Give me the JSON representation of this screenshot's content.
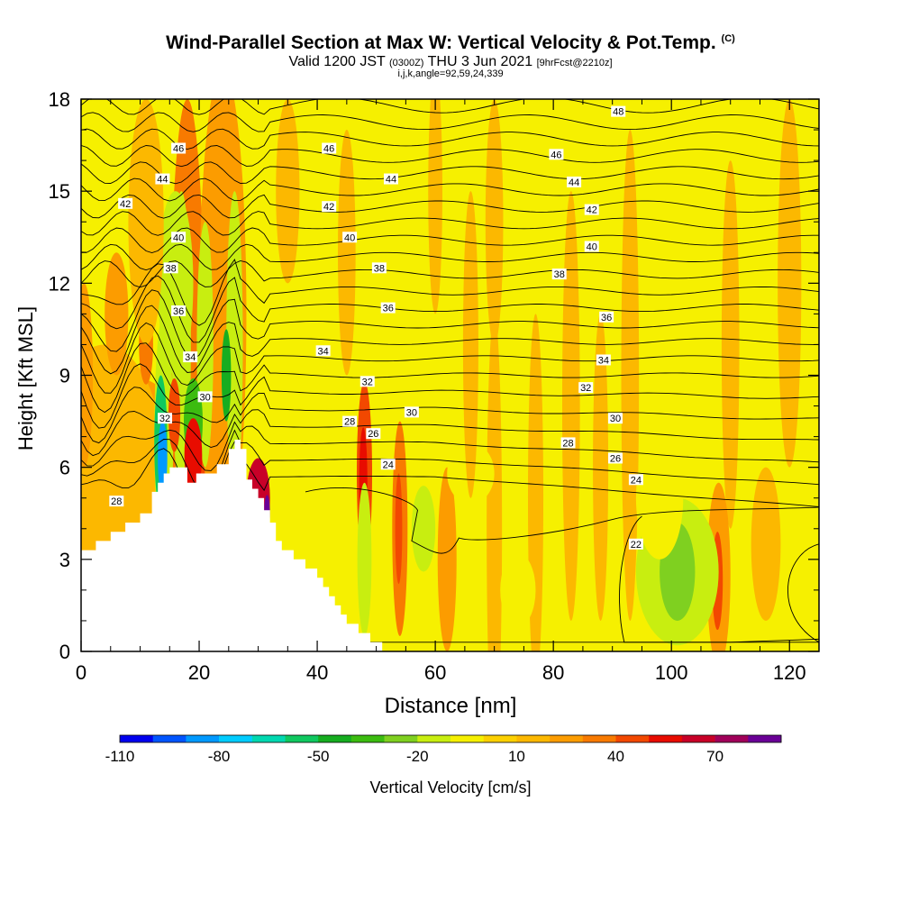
{
  "chart_data": {
    "type": "heatmap",
    "title": "Wind-Parallel Section at Max W: Vertical Velocity & Pot.Temp.",
    "title_mark": "(C)",
    "subtitle_valid": "Valid 1200 JST",
    "subtitle_utc": "(0300Z)",
    "subtitle_date": "THU 3 Jun 2021",
    "subtitle_fcst": "[9hrFcst@2210z]",
    "subtitle_indices": "i,j,k,angle=92,59,24,339",
    "xlabel": "Distance [nm]",
    "ylabel": "Height [Kft MSL]",
    "xlim": [
      0,
      125
    ],
    "ylim": [
      0,
      18
    ],
    "x_ticks": [
      0,
      20,
      40,
      60,
      80,
      100,
      120
    ],
    "y_ticks": [
      0,
      3,
      6,
      9,
      12,
      15,
      18
    ],
    "colorbar": {
      "label": "Vertical Velocity [cm/s]",
      "min": -110,
      "max": 90,
      "step": 10,
      "tick_values": [
        -110,
        -80,
        -50,
        -20,
        10,
        40,
        70
      ],
      "colors": [
        "#0000ee",
        "#0055ff",
        "#0099ff",
        "#00ccff",
        "#00d8b0",
        "#10c860",
        "#16ad20",
        "#3cbc10",
        "#7fd020",
        "#c8ee10",
        "#f6f000",
        "#fcd000",
        "#fcb800",
        "#fc9c00",
        "#f87a00",
        "#f24800",
        "#e80c00",
        "#c80028",
        "#a0005a",
        "#6a0096"
      ]
    },
    "terrain": [
      [
        0,
        3.3
      ],
      [
        2.5,
        3.3
      ],
      [
        2.5,
        3.6
      ],
      [
        5,
        3.6
      ],
      [
        5,
        3.9
      ],
      [
        7.5,
        3.9
      ],
      [
        7.5,
        4.2
      ],
      [
        10,
        4.2
      ],
      [
        10,
        4.5
      ],
      [
        12,
        4.5
      ],
      [
        12,
        5.2
      ],
      [
        13,
        5.2
      ],
      [
        13,
        5.5
      ],
      [
        14,
        5.5
      ],
      [
        14,
        5.8
      ],
      [
        15,
        5.8
      ],
      [
        15,
        6.0
      ],
      [
        18,
        6.0
      ],
      [
        18,
        5.5
      ],
      [
        19.5,
        5.5
      ],
      [
        19.5,
        5.8
      ],
      [
        23,
        5.8
      ],
      [
        23,
        6.1
      ],
      [
        25,
        6.1
      ],
      [
        25,
        6.6
      ],
      [
        26,
        6.6
      ],
      [
        26,
        6.9
      ],
      [
        27,
        6.9
      ],
      [
        27,
        6.6
      ],
      [
        28,
        6.6
      ],
      [
        28,
        5.6
      ],
      [
        29,
        5.6
      ],
      [
        29,
        5.3
      ],
      [
        30,
        5.3
      ],
      [
        30,
        5.0
      ],
      [
        31,
        5.0
      ],
      [
        31,
        4.6
      ],
      [
        32,
        4.6
      ],
      [
        32,
        4.2
      ],
      [
        33,
        4.2
      ],
      [
        33,
        3.6
      ],
      [
        34,
        3.6
      ],
      [
        34,
        3.3
      ],
      [
        36,
        3.3
      ],
      [
        36,
        3.0
      ],
      [
        38,
        3.0
      ],
      [
        38,
        2.7
      ],
      [
        40,
        2.7
      ],
      [
        40,
        2.4
      ],
      [
        41,
        2.4
      ],
      [
        41,
        2.1
      ],
      [
        42,
        2.1
      ],
      [
        42,
        1.8
      ],
      [
        43,
        1.8
      ],
      [
        43,
        1.5
      ],
      [
        44,
        1.5
      ],
      [
        44,
        1.2
      ],
      [
        45,
        1.2
      ],
      [
        45,
        0.9
      ],
      [
        47,
        0.9
      ],
      [
        47,
        0.6
      ],
      [
        49,
        0.6
      ],
      [
        49,
        0.3
      ],
      [
        51,
        0.3
      ],
      [
        51,
        0
      ],
      [
        125,
        0
      ]
    ],
    "theta_contours": [
      {
        "value": 46,
        "label_points": [
          [
            16.5,
            16.4
          ],
          [
            42,
            16.4
          ],
          [
            80.5,
            16.2
          ]
        ]
      },
      {
        "value": 48,
        "label_points": [
          [
            91,
            17.6
          ]
        ]
      },
      {
        "value": 44,
        "label_points": [
          [
            13.8,
            15.4
          ],
          [
            52.5,
            15.4
          ],
          [
            83.5,
            15.3
          ]
        ]
      },
      {
        "value": 42,
        "label_points": [
          [
            7.5,
            14.6
          ],
          [
            42,
            14.5
          ],
          [
            86.5,
            14.4
          ]
        ]
      },
      {
        "value": 40,
        "label_points": [
          [
            16.5,
            13.5
          ],
          [
            45.5,
            13.5
          ],
          [
            86.5,
            13.2
          ]
        ]
      },
      {
        "value": 38,
        "label_points": [
          [
            15.2,
            12.5
          ],
          [
            50.5,
            12.5
          ],
          [
            81,
            12.3
          ]
        ]
      },
      {
        "value": 36,
        "label_points": [
          [
            16.5,
            11.1
          ],
          [
            52,
            11.2
          ],
          [
            89,
            10.9
          ]
        ]
      },
      {
        "value": 34,
        "label_points": [
          [
            18.5,
            9.6
          ],
          [
            41,
            9.8
          ],
          [
            88.5,
            9.5
          ]
        ]
      },
      {
        "value": 32,
        "label_points": [
          [
            14.2,
            7.6
          ],
          [
            48.5,
            8.8
          ],
          [
            85.5,
            8.6
          ]
        ]
      },
      {
        "value": 30,
        "label_points": [
          [
            21,
            8.3
          ],
          [
            56,
            7.8
          ],
          [
            90.5,
            7.6
          ]
        ]
      },
      {
        "value": 28,
        "label_points": [
          [
            45.5,
            7.5
          ],
          [
            82.5,
            6.8
          ],
          [
            6,
            4.9
          ]
        ]
      },
      {
        "value": 26,
        "label_points": [
          [
            49.5,
            7.1
          ],
          [
            90.5,
            6.3
          ]
        ]
      },
      {
        "value": 24,
        "label_points": [
          [
            52,
            6.1
          ],
          [
            94,
            5.6
          ]
        ]
      },
      {
        "value": 22,
        "label_points": [
          [
            94,
            3.5
          ]
        ]
      }
    ]
  }
}
